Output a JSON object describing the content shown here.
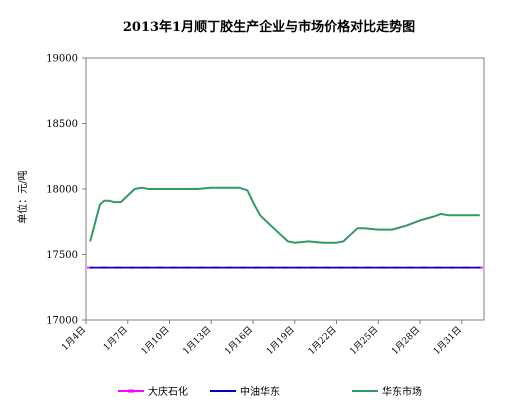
{
  "chart_data": {
    "type": "line",
    "title": "2013年1月顺丁胶生产企业与市场价格对比走势图",
    "ylabel": "单位：元/吨",
    "xlabel": "",
    "ylim": [
      17000,
      19000
    ],
    "yticks": [
      17000,
      17500,
      18000,
      18500,
      19000
    ],
    "xlim": [
      4,
      32.6
    ],
    "x_tick_values": [
      4,
      7,
      10,
      13,
      16,
      19,
      22,
      25,
      28,
      31
    ],
    "x_tick_labels": [
      "1月4日",
      "1月7日",
      "1月10日",
      "1月13日",
      "1月16日",
      "1月19日",
      "1月22日",
      "1月25日",
      "1月28日",
      "1月31日"
    ],
    "grid": false,
    "legend_position": "bottom",
    "series": [
      {
        "name": "大庆石化",
        "color": "#ff00ff",
        "marker": "dash",
        "x": [
          4.3,
          5.3,
          6.3,
          7.3,
          8.3,
          9.3,
          10.3,
          11.3,
          12.3,
          13.3,
          14.3,
          15.3,
          16.3,
          17.3,
          18.3,
          19.3,
          20.3,
          21.3,
          22.3,
          23.3,
          24.3,
          25.3,
          26.3,
          27.3,
          28.3,
          29.3,
          30.3,
          31.3,
          32.3
        ],
        "y": [
          17400,
          17400,
          17400,
          17400,
          17400,
          17400,
          17400,
          17400,
          17400,
          17400,
          17400,
          17400,
          17400,
          17400,
          17400,
          17400,
          17400,
          17400,
          17400,
          17400,
          17400,
          17400,
          17400,
          17400,
          17400,
          17400,
          17400,
          17400,
          17400
        ]
      },
      {
        "name": "中油华东",
        "color": "#0000cc",
        "marker": "none",
        "x": [
          4.3,
          32.3
        ],
        "y": [
          17400,
          17400
        ]
      },
      {
        "name": "华东市场",
        "color": "#339966",
        "marker": "none",
        "x": [
          4.3,
          4.7,
          5.0,
          5.3,
          5.7,
          6.0,
          6.5,
          7.0,
          7.5,
          8.0,
          8.5,
          9.0,
          10.0,
          11.0,
          12.0,
          13.0,
          14.0,
          15.0,
          15.6,
          16.0,
          16.5,
          17.0,
          17.5,
          18.0,
          18.5,
          19.0,
          20.0,
          21.0,
          22.0,
          22.5,
          23.0,
          23.5,
          24.0,
          25.0,
          26.0,
          27.0,
          28.0,
          29.0,
          29.5,
          30.0,
          31.0,
          32.3
        ],
        "y": [
          17600,
          17760,
          17880,
          17910,
          17910,
          17900,
          17900,
          17950,
          18000,
          18010,
          18000,
          18000,
          18000,
          18000,
          18000,
          18010,
          18010,
          18010,
          17990,
          17900,
          17800,
          17750,
          17700,
          17650,
          17600,
          17590,
          17600,
          17590,
          17590,
          17600,
          17650,
          17700,
          17700,
          17690,
          17690,
          17720,
          17760,
          17790,
          17810,
          17800,
          17800,
          17800
        ]
      }
    ]
  }
}
